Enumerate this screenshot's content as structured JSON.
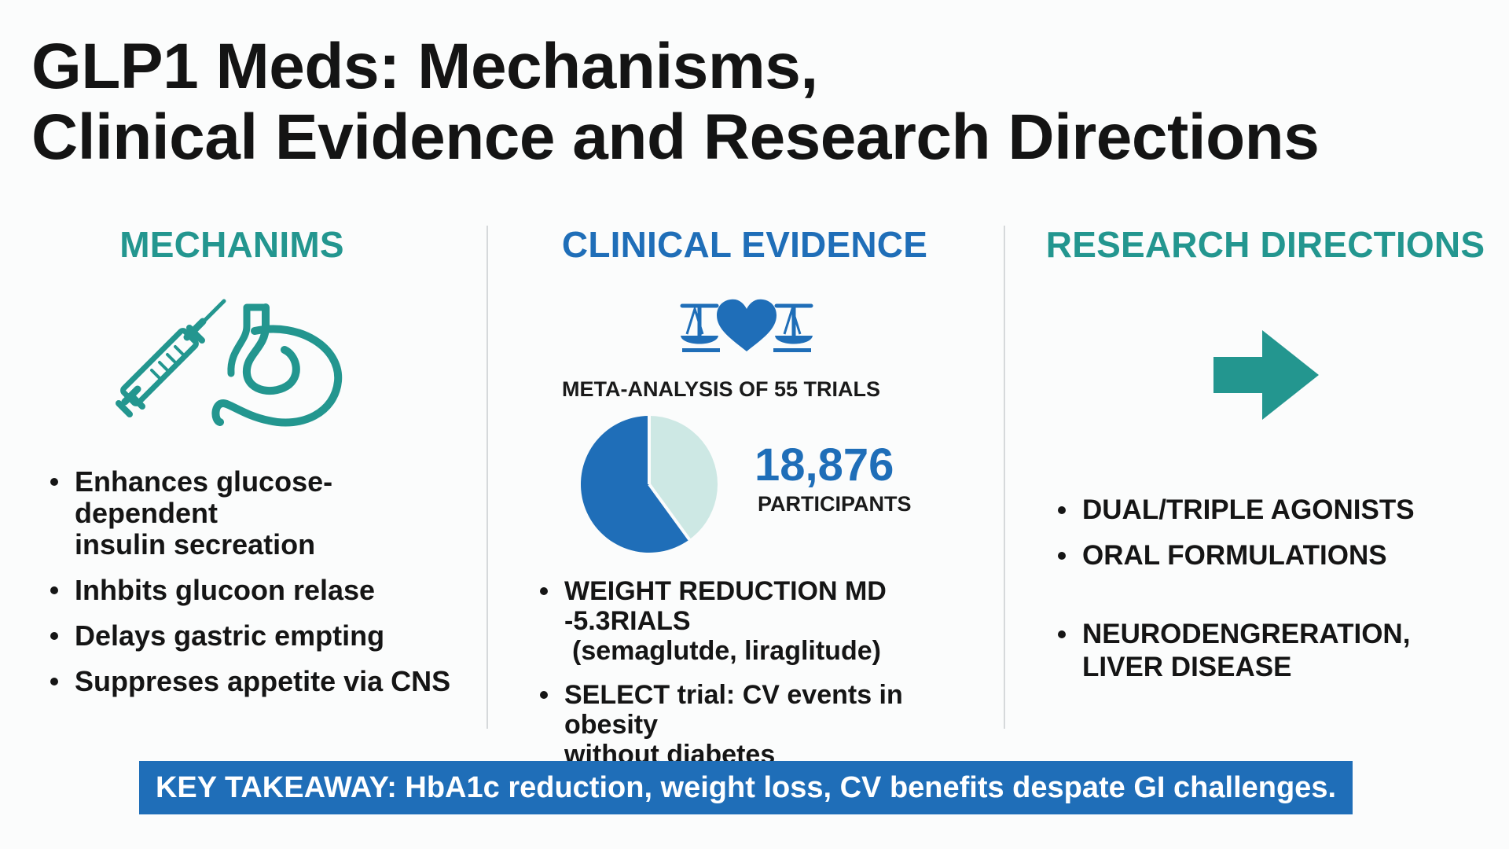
{
  "title": {
    "line1": "GLP1 Meds: Mechanisms,",
    "line2": "Clinical Evidence and Research Directions"
  },
  "colors": {
    "teal": "#23968f",
    "blue": "#1f6eb8",
    "light_teal": "#cde8e4",
    "text": "#141414"
  },
  "mechanisms": {
    "heading": "MECHANIMS",
    "icons": [
      "syringe-icon",
      "stomach-icon"
    ],
    "bullets": [
      [
        "Enhances glucose-dependent",
        "insulin secreation"
      ],
      [
        "Inhbits glucoon relase"
      ],
      [
        "Delays gastric empting"
      ],
      [
        "Suppreses appetite via CNS"
      ]
    ]
  },
  "clinical": {
    "heading": "CLINICAL EVIDENCE",
    "icon": "scales-heart-icon",
    "meta_label": "META-ANALYSIS OF 55 TRIALS",
    "pie": {
      "primary_fraction": 0.6,
      "primary_color": "#1f6eb8",
      "secondary_color": "#cde8e4"
    },
    "participants_number": "18,876",
    "participants_label": "PARTICIPANTS",
    "bullets": [
      [
        "WEIGHT REDUCTION MD -5.3RIALS",
        "(semaglutde, liraglitude)"
      ],
      [
        "SELECT trial: CV events in obesity",
        "without diabetes"
      ]
    ]
  },
  "research": {
    "heading": "RESEARCH DIRECTIONS",
    "icon": "arrow-right-icon",
    "bullets": [
      [
        "DUAL/TRIPLE AGONISTS"
      ],
      [
        "ORAL FORMULATIONS"
      ],
      [
        "NEURODENGRERATION,",
        "LIVER DISEASE"
      ]
    ]
  },
  "takeaway": "KEY TAKEAWAY: HbA1c reduction, weight loss, CV benefits despate GI challenges."
}
